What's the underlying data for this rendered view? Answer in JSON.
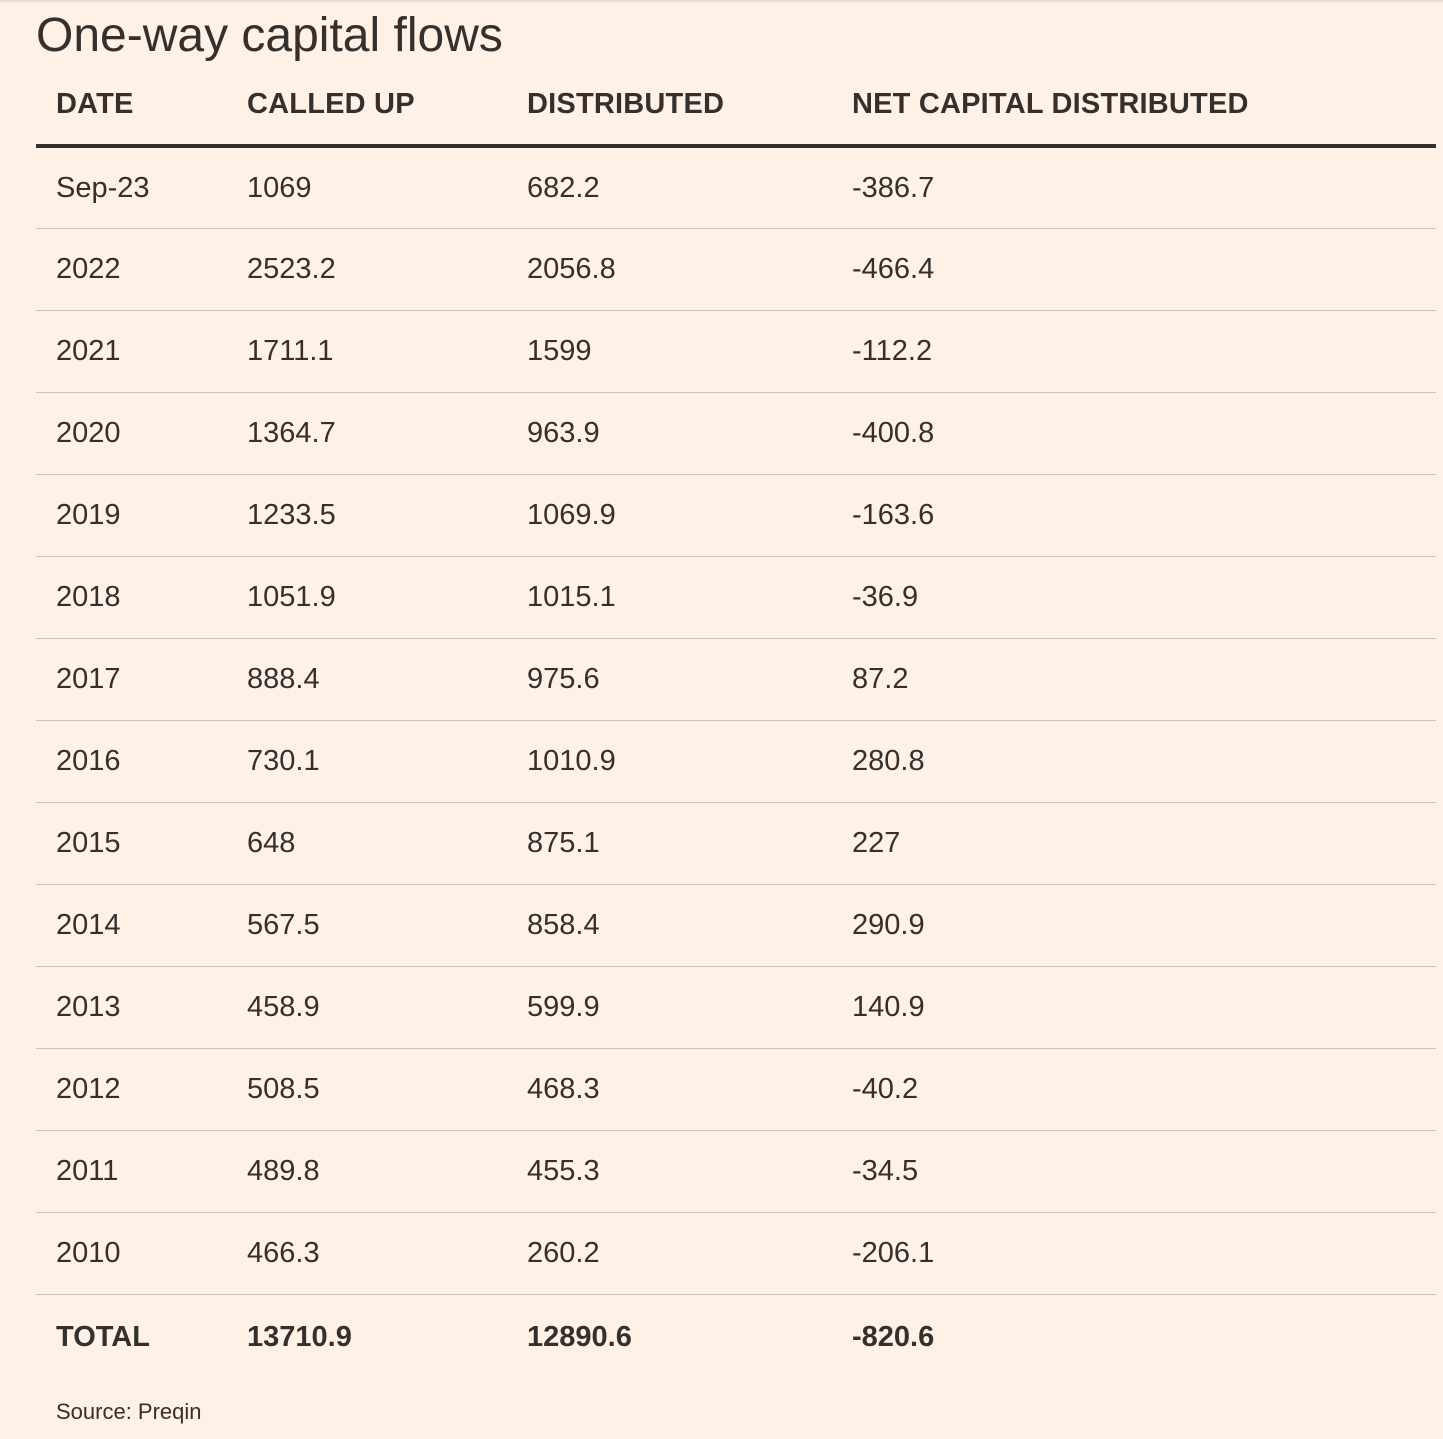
{
  "chart_data": {
    "type": "table",
    "title": "One-way capital flows",
    "columns": [
      "DATE",
      "CALLED UP",
      "DISTRIBUTED",
      "NET CAPITAL DISTRIBUTED"
    ],
    "rows": [
      [
        "Sep-23",
        "1069",
        "682.2",
        "-386.7"
      ],
      [
        "2022",
        "2523.2",
        "2056.8",
        "-466.4"
      ],
      [
        "2021",
        "1711.1",
        "1599",
        "-112.2"
      ],
      [
        "2020",
        "1364.7",
        "963.9",
        "-400.8"
      ],
      [
        "2019",
        "1233.5",
        "1069.9",
        "-163.6"
      ],
      [
        "2018",
        "1051.9",
        "1015.1",
        "-36.9"
      ],
      [
        "2017",
        "888.4",
        "975.6",
        "87.2"
      ],
      [
        "2016",
        "730.1",
        "1010.9",
        "280.8"
      ],
      [
        "2015",
        "648",
        "875.1",
        "227"
      ],
      [
        "2014",
        "567.5",
        "858.4",
        "290.9"
      ],
      [
        "2013",
        "458.9",
        "599.9",
        "140.9"
      ],
      [
        "2012",
        "508.5",
        "468.3",
        "-40.2"
      ],
      [
        "2011",
        "489.8",
        "455.3",
        "-34.5"
      ],
      [
        "2010",
        "466.3",
        "260.2",
        "-206.1"
      ]
    ],
    "total": [
      "TOTAL",
      "13710.9",
      "12890.6",
      "-820.6"
    ],
    "source": "Source: Preqin"
  },
  "colors": {
    "background": "#fff1e5",
    "text": "#33302e",
    "rule": "#ccc1b7"
  }
}
